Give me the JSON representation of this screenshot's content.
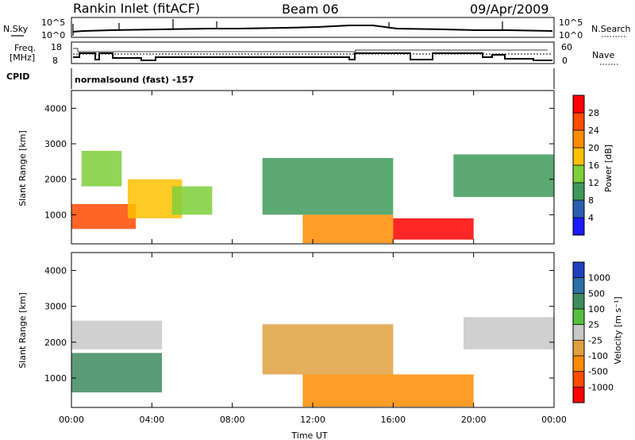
{
  "header": {
    "title": "Rankin Inlet (fitACF)",
    "beam": "Beam 06",
    "date": "09/Apr/2009"
  },
  "top_panels": {
    "nsky_label": "N.Sky",
    "nsearch_label": "N.Search",
    "sky_ticks": [
      "10^5",
      "10^0"
    ],
    "freq_label_1": "Freq.",
    "freq_label_2": "[MHz]",
    "freq_ticks": [
      "18",
      "8"
    ],
    "nave_label": "Nave",
    "nave_ticks": [
      "60",
      "0"
    ],
    "cpid_label": "CPID",
    "cpid_text": "normalsound (fast) -157"
  },
  "power_panel": {
    "ylabel": "Slant Range [km]",
    "yticks": [
      "4000",
      "3000",
      "2000",
      "1000"
    ],
    "colorbar_label": "Power [dB]",
    "colorbar_ticks": [
      "28",
      "24",
      "20",
      "16",
      "12",
      "8",
      "4"
    ],
    "colorbar_colors": [
      "#ff0000",
      "#ff4a00",
      "#ff8c00",
      "#ffc000",
      "#7fcf3a",
      "#3f9a5a",
      "#2a5fb0",
      "#1a1aff"
    ]
  },
  "velocity_panel": {
    "ylabel": "Slant Range [km]",
    "yticks": [
      "4000",
      "3000",
      "2000",
      "1000"
    ],
    "colorbar_label": "Velocity [m s⁻¹]",
    "colorbar_ticks": [
      "1000",
      "500",
      "100",
      "25",
      "-25",
      "-100",
      "-500",
      "-1000"
    ],
    "colorbar_colors": [
      "#2040c0",
      "#2e6fa8",
      "#3f8a5f",
      "#55c040",
      "#c8c8c8",
      "#e0a040",
      "#ff8c00",
      "#ff4a00",
      "#ff0000"
    ]
  },
  "x_axis": {
    "xlabel": "Time UT",
    "ticks": [
      "00:00",
      "04:00",
      "08:00",
      "12:00",
      "16:00",
      "20:00",
      "00:00"
    ]
  },
  "chart_data": {
    "type": "heatmap",
    "x_range_hours": [
      0,
      24
    ],
    "y_range_km": [
      180,
      4500
    ],
    "power_regions": [
      {
        "t0": 0.0,
        "t1": 3.2,
        "r0": 600,
        "r1": 1300,
        "value_db": 26
      },
      {
        "t0": 2.8,
        "t1": 5.5,
        "r0": 900,
        "r1": 2000,
        "value_db": 18
      },
      {
        "t0": 5.0,
        "t1": 7.0,
        "r0": 1000,
        "r1": 1800,
        "value_db": 14
      },
      {
        "t0": 0.5,
        "t1": 2.5,
        "r0": 1800,
        "r1": 2800,
        "value_db": 12
      },
      {
        "t0": 11.5,
        "t1": 16.0,
        "r0": 200,
        "r1": 1000,
        "value_db": 22
      },
      {
        "t0": 16.0,
        "t1": 20.0,
        "r0": 300,
        "r1": 900,
        "value_db": 27
      },
      {
        "t0": 9.5,
        "t1": 16.0,
        "r0": 1000,
        "r1": 2600,
        "value_db": 8
      },
      {
        "t0": 19.0,
        "t1": 24.0,
        "r0": 1500,
        "r1": 2700,
        "value_db": 10
      }
    ],
    "velocity_regions": [
      {
        "t0": 0.0,
        "t1": 4.5,
        "r0": 600,
        "r1": 1700,
        "value_ms": 150
      },
      {
        "t0": 0.0,
        "t1": 4.5,
        "r0": 1800,
        "r1": 2600,
        "value_ms": 0
      },
      {
        "t0": 11.5,
        "t1": 20.0,
        "r0": 200,
        "r1": 1100,
        "value_ms": -300
      },
      {
        "t0": 19.5,
        "t1": 24.0,
        "r0": 1800,
        "r1": 2700,
        "value_ms": 0
      },
      {
        "t0": 9.5,
        "t1": 16.0,
        "r0": 1100,
        "r1": 2500,
        "value_ms": -50
      }
    ]
  }
}
